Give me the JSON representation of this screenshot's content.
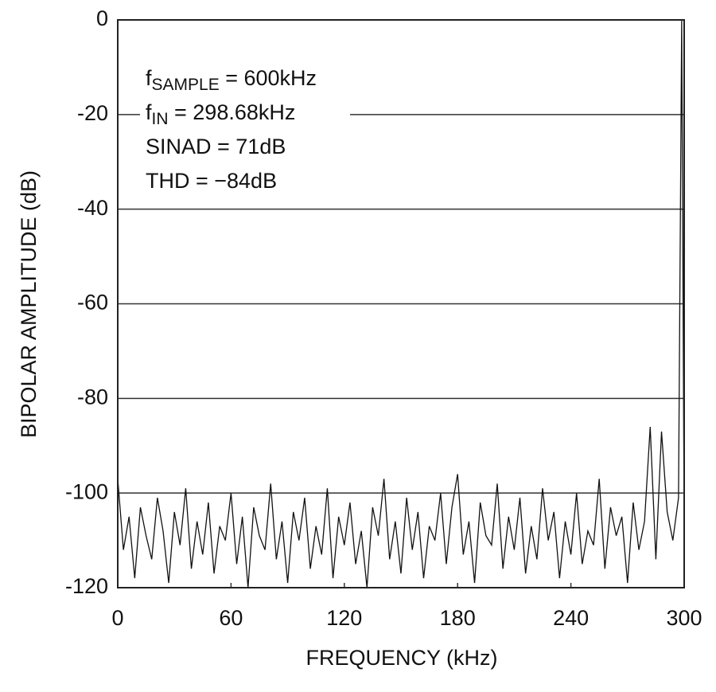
{
  "chart_data": {
    "type": "line",
    "xlabel": "FREQUENCY (kHz)",
    "ylabel": "BIPOLAR AMPLITUDE (dB)",
    "xlim": [
      0,
      300
    ],
    "xticks": [
      0,
      60,
      120,
      180,
      240,
      300
    ],
    "ylim": [
      -120,
      0
    ],
    "yticks": [
      -120,
      -100,
      -80,
      -60,
      -40,
      -20,
      0
    ],
    "grid": true,
    "annotations": [
      [
        {
          "text": "f"
        },
        {
          "text": "SAMPLE",
          "sub": true
        },
        {
          "text": " = 600kHz"
        }
      ],
      [
        {
          "text": "f"
        },
        {
          "text": "IN",
          "sub": true
        },
        {
          "text": " = 298.68kHz"
        }
      ],
      [
        {
          "text": "SINAD = 71dB"
        }
      ],
      [
        {
          "text": "THD = −84dB"
        }
      ]
    ],
    "x": [
      0,
      3,
      6,
      9,
      12,
      15,
      18,
      21,
      24,
      27,
      30,
      33,
      36,
      39,
      42,
      45,
      48,
      51,
      54,
      57,
      60,
      63,
      66,
      69,
      72,
      75,
      78,
      81,
      84,
      87,
      90,
      93,
      96,
      99,
      102,
      105,
      108,
      111,
      114,
      117,
      120,
      123,
      126,
      129,
      132,
      135,
      138,
      141,
      144,
      147,
      150,
      153,
      156,
      159,
      162,
      165,
      168,
      171,
      174,
      177,
      180,
      183,
      186,
      189,
      192,
      195,
      198,
      201,
      204,
      207,
      210,
      213,
      216,
      219,
      222,
      225,
      228,
      231,
      234,
      237,
      240,
      243,
      246,
      249,
      252,
      255,
      258,
      261,
      264,
      267,
      270,
      273,
      276,
      279,
      282,
      285,
      288,
      291,
      294,
      297,
      298.68,
      300
    ],
    "series": [
      {
        "color": "#111111",
        "values": [
          -97,
          -112,
          -105,
          -118,
          -103,
          -109,
          -114,
          -101,
          -108,
          -119,
          -104,
          -111,
          -99,
          -116,
          -106,
          -113,
          -102,
          -117,
          -107,
          -110,
          -100,
          -115,
          -105,
          -120,
          -103,
          -109,
          -112,
          -98,
          -114,
          -106,
          -119,
          -104,
          -110,
          -101,
          -116,
          -107,
          -113,
          -99,
          -118,
          -105,
          -111,
          -102,
          -115,
          -108,
          -120,
          -103,
          -109,
          -97,
          -114,
          -106,
          -117,
          -101,
          -112,
          -104,
          -118,
          -107,
          -110,
          -100,
          -115,
          -103,
          -96,
          -113,
          -106,
          -119,
          -102,
          -109,
          -111,
          -98,
          -116,
          -105,
          -112,
          -101,
          -117,
          -107,
          -114,
          -99,
          -110,
          -104,
          -118,
          -106,
          -113,
          -100,
          -115,
          -108,
          -111,
          -97,
          -116,
          -103,
          -109,
          -105,
          -119,
          -102,
          -112,
          -106,
          -86,
          -114,
          -87,
          -104,
          -110,
          -101,
          0,
          -108
        ]
      }
    ]
  }
}
